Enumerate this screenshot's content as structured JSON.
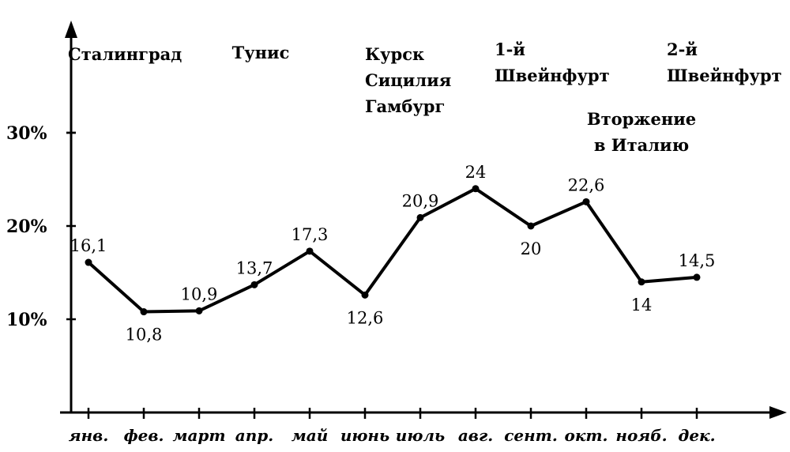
{
  "chart_data": {
    "type": "line",
    "title": "",
    "xlabel": "",
    "ylabel": "",
    "categories": [
      "янв.",
      "фев.",
      "март",
      "апр.",
      "май",
      "июнь",
      "июль",
      "авг.",
      "сент.",
      "окт.",
      "нояб.",
      "дек."
    ],
    "series": [
      {
        "values": [
          16.1,
          10.8,
          10.9,
          13.7,
          17.3,
          12.6,
          20.9,
          24,
          20,
          22.6,
          14,
          14.5
        ],
        "value_labels": [
          "16,1",
          "10,8",
          "10,9",
          "13,7",
          "17,3",
          "12,6",
          "20,9",
          "24",
          "20",
          "22,6",
          "14",
          "14,5"
        ]
      }
    ],
    "y_ticks": [
      {
        "value": 10,
        "label": "10%"
      },
      {
        "value": 20,
        "label": "20%"
      },
      {
        "value": 30,
        "label": "30%"
      }
    ],
    "ylim": [
      0,
      40
    ],
    "grid": false,
    "annotations": [
      {
        "month_index": 0,
        "lines": [
          "Сталинград"
        ]
      },
      {
        "month_index": 3,
        "lines": [
          "Тунис"
        ]
      },
      {
        "month_index": 6,
        "lines": [
          "Курск",
          "Сицилия",
          "Гамбург"
        ]
      },
      {
        "month_index": 8,
        "lines": [
          "1-й",
          "Швейнфурт"
        ]
      },
      {
        "month_index": 9,
        "lines": [
          "Вторжение",
          "в Италию"
        ]
      },
      {
        "month_index": 11,
        "lines": [
          "2-й",
          "Швейнфурт"
        ]
      }
    ]
  }
}
